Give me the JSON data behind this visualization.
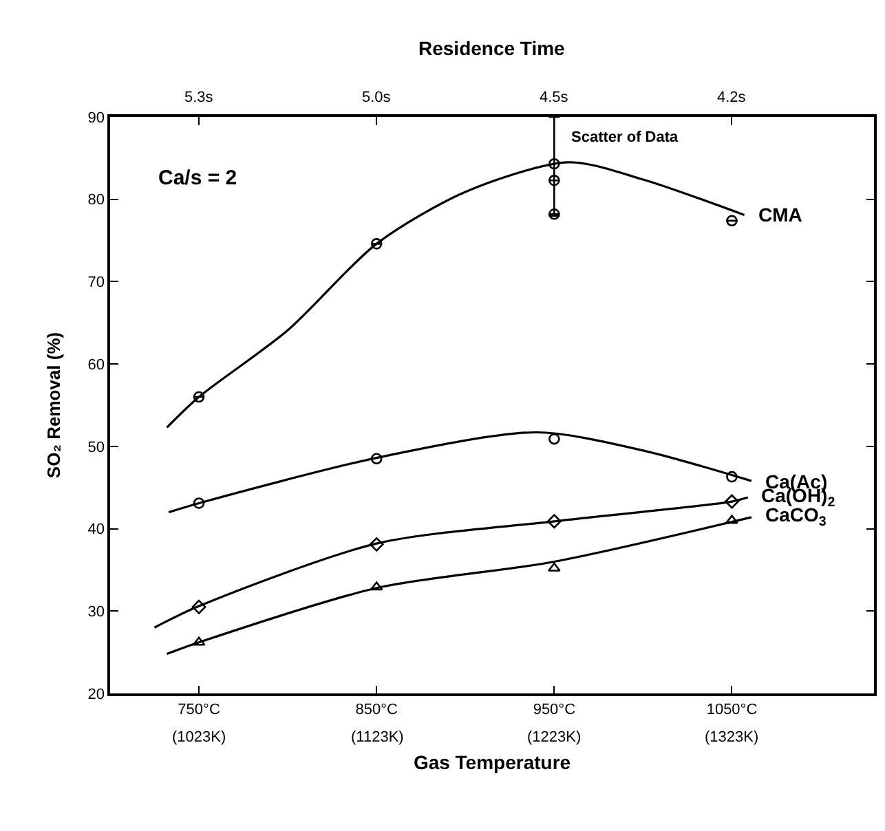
{
  "chart_data": {
    "type": "line",
    "xlabel": "Gas Temperature",
    "x2label": "Residence Time",
    "ylabel": "SO₂ Removal (%)",
    "xlim": [
      700,
      1130
    ],
    "ylim": [
      20,
      90
    ],
    "xticks": [
      {
        "value": 750,
        "label": "750°C"
      },
      {
        "value": 850,
        "label": "850°C"
      },
      {
        "value": 950,
        "label": "950°C"
      },
      {
        "value": 1050,
        "label": "1050°C"
      }
    ],
    "yticks": [
      20,
      30,
      40,
      50,
      60,
      70,
      80,
      90
    ],
    "grid": false,
    "annotations": [
      "Ca/s = 2",
      "5.3s",
      "5.0s",
      "4.5s",
      "4.2s",
      "(1023K)",
      "(1123K)",
      "(1223K)",
      "(1323K)",
      {
        "text": "Scatter of Data",
        "x": 950,
        "y": 87.5
      }
    ],
    "series": [
      {
        "name": "CMA",
        "color": "#000000",
        "marker": "none",
        "line_style": "solid",
        "x": [
          732,
          750,
          800,
          850,
          900,
          958,
          1000,
          1057
        ],
        "values": [
          52.3,
          56,
          64.1,
          74.6,
          80.9,
          84.5,
          82.4,
          78.1
        ]
      },
      {
        "name": "Ca(Ac)",
        "color": "#000000",
        "marker": "none",
        "line_style": "solid",
        "x": [
          733,
          750,
          850,
          940,
          1000,
          1061
        ],
        "values": [
          42,
          43.1,
          48.6,
          51.7,
          49.5,
          45.8
        ]
      },
      {
        "name": "Ca(OH)$_{2}$",
        "color": "#000000",
        "marker": "none",
        "line_style": "solid",
        "x": [
          725,
          750,
          850,
          950,
          1050,
          1059
        ],
        "values": [
          28,
          30.6,
          38.2,
          40.9,
          43.3,
          43.8
        ]
      },
      {
        "name": "CaCO$_{3}$",
        "color": "#000000",
        "marker": "none",
        "line_style": "solid",
        "x": [
          732,
          750,
          850,
          950,
          1061
        ],
        "values": [
          24.8,
          26.2,
          32.8,
          36,
          41.4
        ]
      },
      {
        "type": "scatter",
        "color": "#000000",
        "marker": "circle",
        "x": [
          750,
          850,
          950,
          950,
          950,
          1050
        ],
        "values": [
          56,
          74.6,
          84.3,
          82.3,
          78.2,
          77.4
        ],
        "errors": [
          null,
          null,
          [
            78,
            90
          ],
          null,
          null,
          null
        ]
      },
      {
        "type": "scatter",
        "color": "#000000",
        "marker": "circle",
        "x": [
          750,
          850,
          950,
          1050
        ],
        "values": [
          43.1,
          48.5,
          50.9,
          46.3
        ]
      },
      {
        "type": "scatter",
        "color": "#000000",
        "marker": "diamond",
        "x": [
          750,
          850,
          950,
          1050
        ],
        "values": [
          30.5,
          38.1,
          40.9,
          43.3
        ]
      },
      {
        "type": "scatter",
        "color": "#000000",
        "marker": "triangle",
        "x": [
          750,
          850,
          950,
          1050
        ],
        "values": [
          26.2,
          32.9,
          35.2,
          41
        ]
      }
    ]
  }
}
